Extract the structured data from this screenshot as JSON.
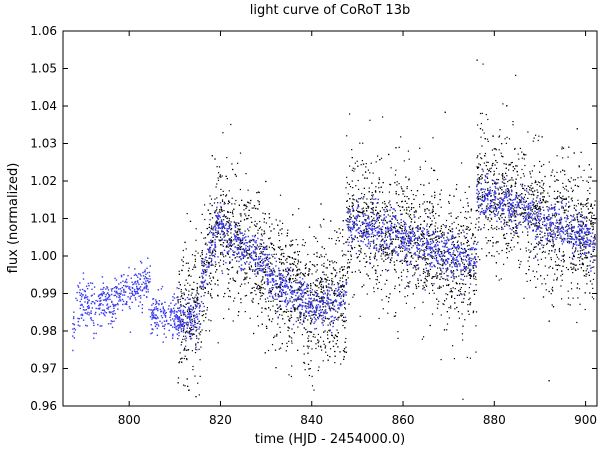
{
  "chart_data": {
    "type": "scatter",
    "title": "light curve of CoRoT 13b",
    "xlabel": "time (HJD - 2454000.0)",
    "ylabel": "flux (normalized)",
    "xlim": [
      785.5,
      902.5
    ],
    "ylim": [
      0.96,
      1.06
    ],
    "xticks": [
      800,
      820,
      840,
      860,
      880,
      900
    ],
    "yticks": [
      0.96,
      0.97,
      0.98,
      0.99,
      1.0,
      1.01,
      1.02,
      1.03,
      1.04,
      1.05,
      1.06
    ],
    "ytick_labels": [
      "0.96",
      "0.97",
      "0.98",
      "0.99",
      "1.00",
      "1.01",
      "1.02",
      "1.03",
      "1.04",
      "1.05",
      "1.06"
    ],
    "grid": false,
    "legend": "none",
    "series": [
      {
        "color": "#000000",
        "x_range": [
          810.5,
          902.0
        ],
        "baseline_segments": [
          {
            "x": [
              810.5,
              815.5
            ],
            "y": [
              0.983,
              0.985
            ]
          },
          {
            "x": [
              815.5,
              820.0
            ],
            "y": [
              0.988,
              1.012
            ]
          },
          {
            "x": [
              820.0,
              830.0
            ],
            "y": [
              1.008,
              0.998
            ]
          },
          {
            "x": [
              830.0,
              840.0
            ],
            "y": [
              0.996,
              0.987
            ]
          },
          {
            "x": [
              840.0,
              847.5
            ],
            "y": [
              0.986,
              0.99
            ]
          },
          {
            "x": [
              847.5,
              860.0
            ],
            "y": [
              1.01,
              1.005
            ]
          },
          {
            "x": [
              860.0,
              876.0
            ],
            "y": [
              1.005,
              0.997
            ]
          },
          {
            "x": [
              876.0,
              890.0
            ],
            "y": [
              1.02,
              1.01
            ]
          },
          {
            "x": [
              890.0,
              902.0
            ],
            "y": [
              1.01,
              1.004
            ]
          }
        ],
        "scatter_sigma": 0.0085,
        "n_points": 5200
      },
      {
        "color": "#3a3af0",
        "baseline_segments": [
          {
            "x": [
              787.5,
              797.0
            ],
            "y": [
              0.988,
              0.988
            ]
          },
          {
            "x": [
              797.0,
              804.5
            ],
            "y": [
              0.991,
              0.993
            ]
          },
          {
            "x": [
              804.5,
              810.5
            ],
            "y": [
              0.985,
              0.984
            ]
          },
          {
            "x": [
              810.5,
              815.5
            ],
            "y": [
              0.983,
              0.985
            ]
          },
          {
            "x": [
              815.5,
              820.0
            ],
            "y": [
              0.993,
              1.01
            ]
          },
          {
            "x": [
              820.0,
              830.0
            ],
            "y": [
              1.007,
              0.998
            ]
          },
          {
            "x": [
              830.0,
              840.0
            ],
            "y": [
              0.995,
              0.987
            ]
          },
          {
            "x": [
              840.0,
              847.5
            ],
            "y": [
              0.986,
              0.989
            ]
          },
          {
            "x": [
              847.5,
              860.0
            ],
            "y": [
              1.009,
              1.005
            ]
          },
          {
            "x": [
              860.0,
              876.0
            ],
            "y": [
              1.005,
              0.998
            ]
          },
          {
            "x": [
              876.0,
              890.0
            ],
            "y": [
              1.017,
              1.01
            ]
          },
          {
            "x": [
              890.0,
              902.0
            ],
            "y": [
              1.01,
              1.004
            ]
          }
        ],
        "scatter_sigma": 0.0028,
        "n_points": 2600,
        "transit_period_days": 4.035,
        "transit_depth": 0.006
      }
    ]
  }
}
